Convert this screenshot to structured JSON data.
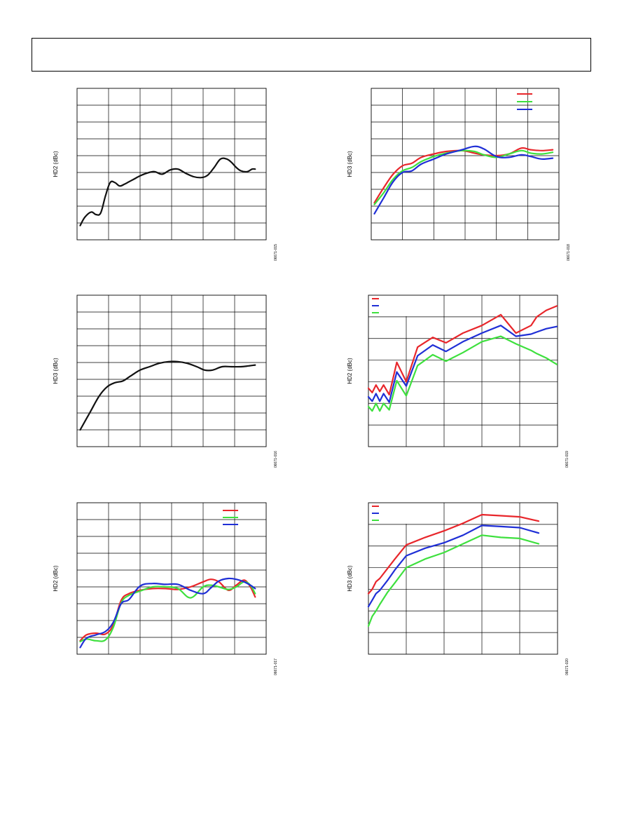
{
  "header": {
    "title": ""
  },
  "colors": {
    "red": "#e8262b",
    "green": "#3ee03e",
    "blue": "#1f2fd6",
    "black": "#111111",
    "grid": "#000000"
  },
  "charts": [
    {
      "id": "chart-hd2-single",
      "ylabel": "HD2 (dBc)",
      "figure_id": "06671-015",
      "chart_data": {
        "type": "line",
        "xlabel": "",
        "ylabel": "HD2 (dBc)",
        "xlim": [
          0,
          6
        ],
        "ylim": [
          0,
          9
        ],
        "grid": true,
        "legend": "none",
        "series": [
          {
            "color": "black",
            "x": [
              0.1,
              0.25,
              0.45,
              0.6,
              0.75,
              0.9,
              1.05,
              1.2,
              1.35,
              1.5,
              1.65,
              1.8,
              2.0,
              2.2,
              2.45,
              2.7,
              2.95,
              3.2,
              3.45,
              3.7,
              3.95,
              4.15,
              4.35,
              4.55,
              4.75,
              4.9,
              5.05,
              5.2,
              5.4,
              5.55,
              5.65
            ],
            "y": [
              0.85,
              1.35,
              1.65,
              1.5,
              1.6,
              2.6,
              3.4,
              3.4,
              3.2,
              3.3,
              3.45,
              3.6,
              3.8,
              3.95,
              4.05,
              3.9,
              4.15,
              4.2,
              3.95,
              3.75,
              3.7,
              3.85,
              4.3,
              4.8,
              4.8,
              4.6,
              4.3,
              4.1,
              4.05,
              4.2,
              4.2
            ]
          }
        ]
      }
    },
    {
      "id": "chart-hd3-rgb-top",
      "ylabel": "HD3 (dBc)",
      "figure_id": "06671-018",
      "chart_data": {
        "type": "line",
        "xlabel": "",
        "ylabel": "HD3 (dBc)",
        "xlim": [
          0,
          6
        ],
        "ylim": [
          0,
          9
        ],
        "grid": true,
        "legend": "top-right",
        "series": [
          {
            "color": "red",
            "x": [
              0.1,
              0.4,
              0.7,
              1.0,
              1.3,
              1.6,
              2.0,
              2.4,
              2.9,
              3.3,
              3.6,
              4.0,
              4.4,
              4.8,
              5.1,
              5.45,
              5.8
            ],
            "y": [
              2.2,
              3.1,
              3.9,
              4.4,
              4.55,
              4.9,
              5.1,
              5.25,
              5.3,
              5.15,
              5.05,
              5.0,
              5.1,
              5.45,
              5.35,
              5.3,
              5.35
            ]
          },
          {
            "color": "green",
            "x": [
              0.1,
              0.4,
              0.7,
              1.0,
              1.3,
              1.6,
              2.0,
              2.4,
              2.9,
              3.3,
              3.6,
              4.0,
              4.4,
              4.8,
              5.1,
              5.45,
              5.8
            ],
            "y": [
              2.1,
              2.8,
              3.6,
              4.1,
              4.3,
              4.65,
              4.95,
              5.15,
              5.3,
              5.25,
              5.05,
              4.9,
              5.1,
              5.3,
              5.15,
              5.1,
              5.2
            ]
          },
          {
            "color": "blue",
            "x": [
              0.1,
              0.4,
              0.7,
              1.0,
              1.3,
              1.6,
              2.0,
              2.4,
              2.9,
              3.3,
              3.6,
              4.0,
              4.4,
              4.8,
              5.1,
              5.45,
              5.8
            ],
            "y": [
              1.55,
              2.5,
              3.45,
              4.0,
              4.1,
              4.5,
              4.8,
              5.1,
              5.35,
              5.55,
              5.4,
              4.95,
              4.9,
              5.05,
              4.95,
              4.8,
              4.85
            ]
          }
        ]
      }
    },
    {
      "id": "chart-hd3-single",
      "ylabel": "HD3 (dBc)",
      "figure_id": "06671-016",
      "chart_data": {
        "type": "line",
        "xlabel": "",
        "ylabel": "HD3 (dBc)",
        "xlim": [
          0,
          6
        ],
        "ylim": [
          0,
          9
        ],
        "grid": true,
        "legend": "none",
        "series": [
          {
            "color": "black",
            "x": [
              0.1,
              0.4,
              0.7,
              0.95,
              1.2,
              1.45,
              1.7,
              2.0,
              2.3,
              2.6,
              2.9,
              3.2,
              3.5,
              3.8,
              4.05,
              4.3,
              4.6,
              4.9,
              5.2,
              5.45,
              5.65
            ],
            "y": [
              1.0,
              2.0,
              3.0,
              3.55,
              3.8,
              3.9,
              4.2,
              4.55,
              4.75,
              4.95,
              5.05,
              5.05,
              4.95,
              4.75,
              4.55,
              4.55,
              4.75,
              4.75,
              4.75,
              4.8,
              4.85
            ]
          }
        ]
      }
    },
    {
      "id": "chart-hd2-rgb-mid",
      "ylabel": "HD2 (dBc)",
      "figure_id": "06671-019",
      "chart_data": {
        "type": "line",
        "xlabel": "",
        "ylabel": "HD2 (dBc)",
        "xlim": [
          0,
          5
        ],
        "ylim": [
          0,
          7
        ],
        "grid": true,
        "legend": "top-left",
        "series": [
          {
            "color": "red",
            "x": [
              0.0,
              0.1,
              0.2,
              0.3,
              0.4,
              0.55,
              0.75,
              1.0,
              1.3,
              1.7,
              2.05,
              2.5,
              3.0,
              3.5,
              3.9,
              4.3,
              4.45,
              4.7,
              4.98
            ],
            "y": [
              2.7,
              2.5,
              2.85,
              2.55,
              2.85,
              2.4,
              3.9,
              3.0,
              4.6,
              5.05,
              4.8,
              5.25,
              5.6,
              6.1,
              5.25,
              5.6,
              6.0,
              6.3,
              6.5
            ]
          },
          {
            "color": "blue",
            "x": [
              0.0,
              0.1,
              0.2,
              0.3,
              0.4,
              0.55,
              0.75,
              1.0,
              1.3,
              1.7,
              2.05,
              2.5,
              3.0,
              3.5,
              3.9,
              4.3,
              4.45,
              4.7,
              4.98
            ],
            "y": [
              2.3,
              2.1,
              2.45,
              2.1,
              2.45,
              2.05,
              3.45,
              2.8,
              4.2,
              4.7,
              4.4,
              4.85,
              5.25,
              5.6,
              5.1,
              5.2,
              5.3,
              5.45,
              5.55
            ]
          },
          {
            "color": "green",
            "x": [
              0.0,
              0.1,
              0.2,
              0.3,
              0.4,
              0.55,
              0.75,
              1.0,
              1.3,
              1.7,
              2.05,
              2.5,
              3.0,
              3.5,
              3.9,
              4.3,
              4.45,
              4.7,
              4.98
            ],
            "y": [
              1.85,
              1.65,
              2.0,
              1.65,
              2.0,
              1.7,
              3.05,
              2.35,
              3.75,
              4.25,
              3.95,
              4.35,
              4.85,
              5.1,
              4.75,
              4.45,
              4.3,
              4.1,
              3.8
            ]
          }
        ]
      }
    },
    {
      "id": "chart-hd2-rgb-bottom",
      "ylabel": "HD2 (dBc)",
      "figure_id": "06671-017",
      "chart_data": {
        "type": "line",
        "xlabel": "",
        "ylabel": "HD2 (dBc)",
        "xlim": [
          0,
          6
        ],
        "ylim": [
          0,
          9
        ],
        "grid": true,
        "legend": "top-right",
        "series": [
          {
            "color": "red",
            "x": [
              0.1,
              0.3,
              0.6,
              0.9,
              1.15,
              1.4,
              1.65,
              2.0,
              2.4,
              2.8,
              3.2,
              3.6,
              4.0,
              4.25,
              4.5,
              4.8,
              5.05,
              5.3,
              5.5,
              5.65
            ],
            "y": [
              0.8,
              1.15,
              1.25,
              1.2,
              1.75,
              3.2,
              3.6,
              3.8,
              3.9,
              3.9,
              3.85,
              4.0,
              4.3,
              4.45,
              4.3,
              3.8,
              4.1,
              4.4,
              4.0,
              3.4
            ]
          },
          {
            "color": "green",
            "x": [
              0.1,
              0.3,
              0.6,
              0.9,
              1.15,
              1.4,
              1.65,
              2.0,
              2.4,
              2.8,
              3.2,
              3.6,
              4.0,
              4.25,
              4.5,
              4.8,
              5.05,
              5.3,
              5.5,
              5.65
            ],
            "y": [
              0.75,
              0.9,
              0.8,
              0.85,
              1.6,
              3.05,
              3.5,
              3.75,
              4.0,
              4.0,
              3.9,
              3.35,
              4.0,
              4.1,
              4.0,
              3.85,
              4.0,
              4.3,
              4.1,
              3.6
            ]
          },
          {
            "color": "blue",
            "x": [
              0.1,
              0.3,
              0.6,
              0.9,
              1.15,
              1.4,
              1.65,
              2.0,
              2.4,
              2.8,
              3.2,
              3.6,
              4.0,
              4.25,
              4.5,
              4.8,
              5.05,
              5.3,
              5.5,
              5.65
            ],
            "y": [
              0.4,
              0.95,
              1.15,
              1.35,
              1.9,
              3.0,
              3.25,
              4.05,
              4.2,
              4.15,
              4.15,
              3.8,
              3.6,
              3.95,
              4.35,
              4.5,
              4.45,
              4.3,
              4.1,
              3.9
            ]
          }
        ]
      }
    },
    {
      "id": "chart-hd3-rgb-bottom",
      "ylabel": "HD3 (dBc)",
      "figure_id": "06671-020",
      "chart_data": {
        "type": "line",
        "xlabel": "",
        "ylabel": "HD3 (dBc)",
        "xlim": [
          0,
          5
        ],
        "ylim": [
          0,
          7
        ],
        "grid": true,
        "legend": "top-left",
        "series": [
          {
            "color": "red",
            "x": [
              0.0,
              0.1,
              0.2,
              0.3,
              0.5,
              0.7,
              1.0,
              1.5,
              2.0,
              2.5,
              3.0,
              3.5,
              4.0,
              4.5
            ],
            "y": [
              2.8,
              3.0,
              3.35,
              3.5,
              3.95,
              4.4,
              5.05,
              5.4,
              5.7,
              6.05,
              6.45,
              6.4,
              6.35,
              6.15
            ]
          },
          {
            "color": "blue",
            "x": [
              0.0,
              0.1,
              0.2,
              0.3,
              0.5,
              0.7,
              1.0,
              1.5,
              2.0,
              2.5,
              3.0,
              3.5,
              4.0,
              4.5
            ],
            "y": [
              2.2,
              2.5,
              2.8,
              2.95,
              3.4,
              3.9,
              4.55,
              4.9,
              5.15,
              5.5,
              5.95,
              5.9,
              5.85,
              5.6
            ]
          },
          {
            "color": "green",
            "x": [
              0.0,
              0.1,
              0.2,
              0.3,
              0.5,
              0.7,
              1.0,
              1.5,
              2.0,
              2.5,
              3.0,
              3.5,
              4.0,
              4.5
            ],
            "y": [
              1.3,
              1.75,
              2.0,
              2.3,
              2.85,
              3.3,
              4.0,
              4.4,
              4.7,
              5.1,
              5.5,
              5.4,
              5.35,
              5.1
            ]
          }
        ]
      }
    }
  ]
}
